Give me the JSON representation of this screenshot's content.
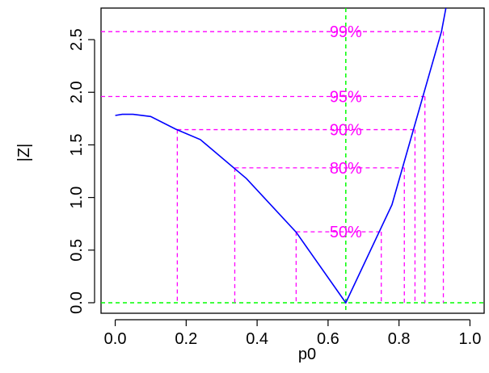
{
  "chart_data": {
    "type": "line",
    "title": "",
    "xlabel": "p0",
    "ylabel": "|Z|",
    "xlim": [
      -0.04,
      1.04
    ],
    "ylim": [
      -0.1,
      2.8
    ],
    "x_ticks": [
      0.0,
      0.2,
      0.4,
      0.6,
      0.8,
      1.0
    ],
    "x_tick_labels": [
      "0.0",
      "0.2",
      "0.4",
      "0.6",
      "0.8",
      "1.0"
    ],
    "y_ticks": [
      0.0,
      0.5,
      1.0,
      1.5,
      2.0,
      2.5
    ],
    "y_tick_labels": [
      "0.0",
      "0.5",
      "1.0",
      "1.5",
      "2.0",
      "2.5"
    ],
    "grid": false,
    "series": [
      {
        "color": "#0000ff",
        "x": [
          0.0,
          0.02,
          0.05,
          0.1,
          0.17,
          0.24,
          0.37,
          0.51,
          0.65,
          0.78,
          0.92,
          0.96
        ],
        "y": [
          1.78,
          1.79,
          1.79,
          1.77,
          1.65,
          1.55,
          1.18,
          0.67,
          0.0,
          0.93,
          2.58,
          3.3
        ]
      }
    ],
    "reference_lines": {
      "vertical": {
        "x": 0.65,
        "color": "#00ff00"
      },
      "horizontal": {
        "y": 0.0,
        "color": "#00ff00"
      }
    },
    "bands": [
      {
        "label": "50%",
        "z": 0.674,
        "x_left": 0.51,
        "x_right": 0.75,
        "color": "#ff00ff"
      },
      {
        "label": "80%",
        "z": 1.282,
        "x_left": 0.337,
        "x_right": 0.815,
        "color": "#ff00ff"
      },
      {
        "label": "90%",
        "z": 1.645,
        "x_left": 0.175,
        "x_right": 0.845,
        "color": "#ff00ff"
      },
      {
        "label": "95%",
        "z": 1.96,
        "x_left": null,
        "x_right": 0.873,
        "color": "#ff00ff"
      },
      {
        "label": "99%",
        "z": 2.576,
        "x_left": null,
        "x_right": 0.925,
        "color": "#ff00ff"
      }
    ]
  }
}
